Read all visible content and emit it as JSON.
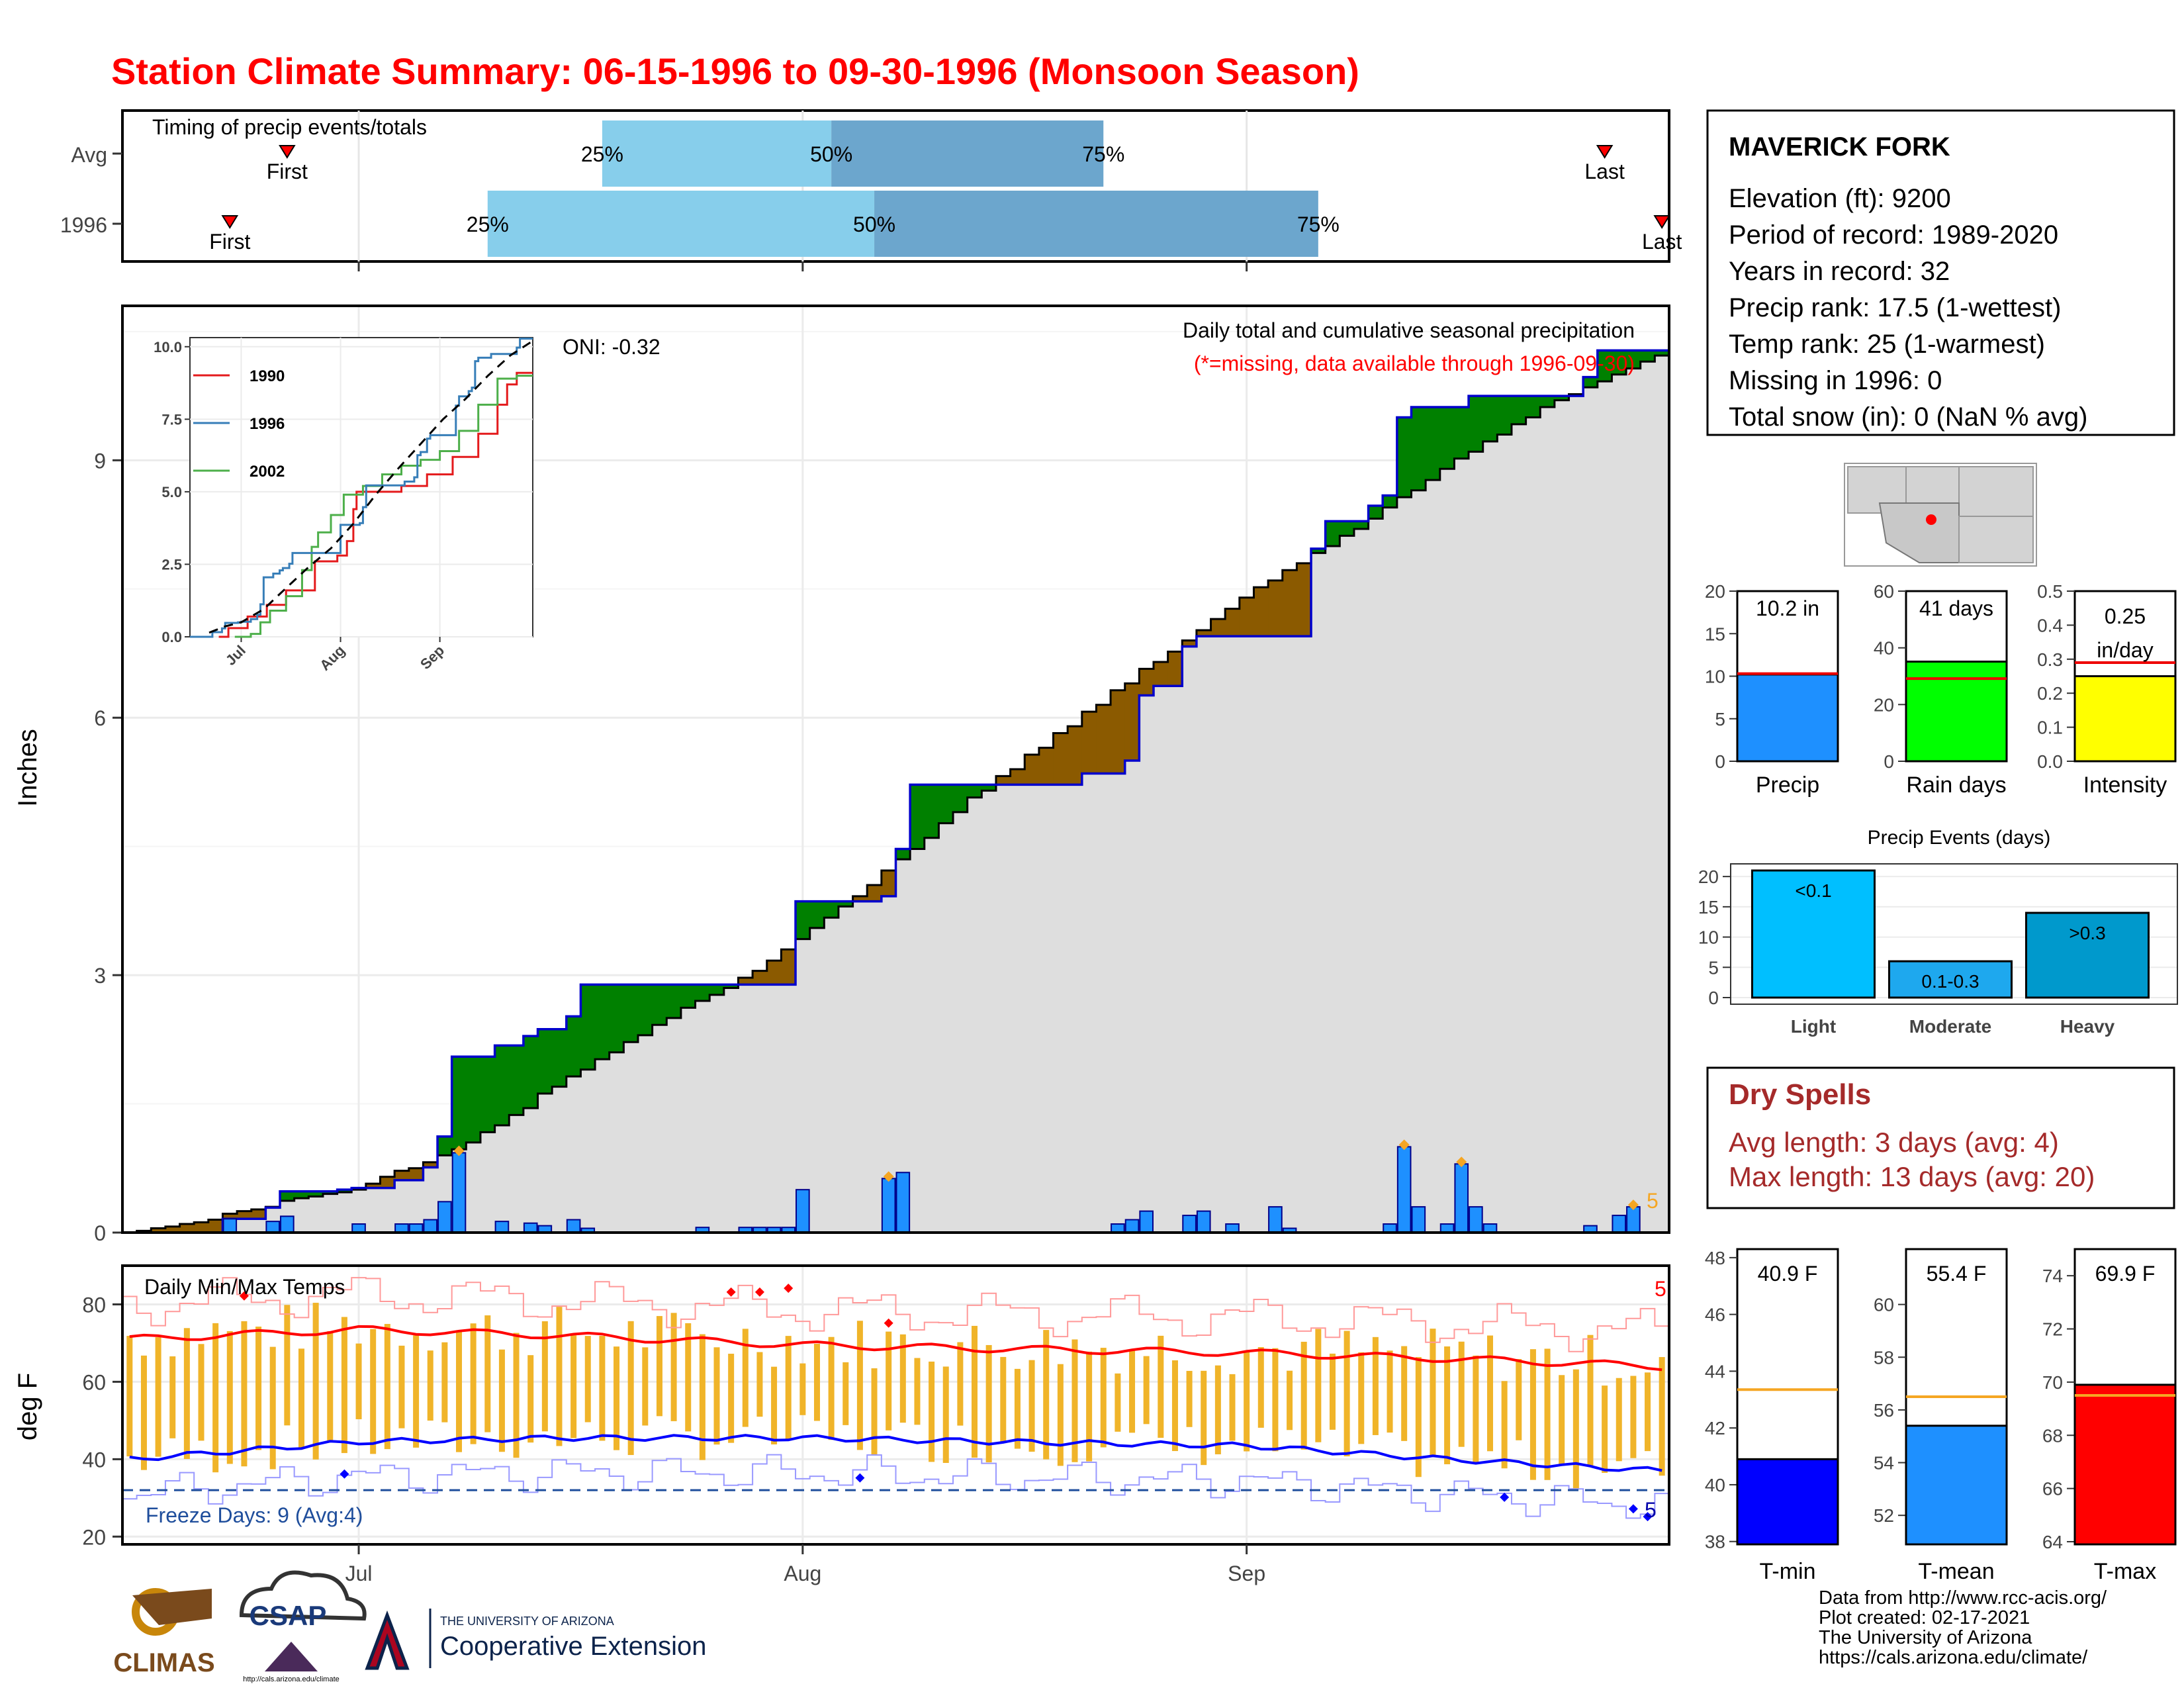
{
  "title": "Station Climate Summary: 06-15-1996 to 09-30-1996 (Monsoon Season)",
  "timing": {
    "label": "Timing of precip events/totals",
    "rows": [
      {
        "name": "Avg",
        "first": "06-26",
        "q25": "07-18",
        "q50": "08-03",
        "q75": "08-22",
        "last": "09-26"
      },
      {
        "name": "1996",
        "first": "06-22",
        "q25": "07-10",
        "q50": "08-06",
        "q75": "09-06",
        "last": "09-30"
      }
    ],
    "first_label": "First",
    "last_label": "Last",
    "q25_label": "25%",
    "q50_label": "50%",
    "q75_label": "75%"
  },
  "x_ticks": [
    "Jul",
    "Aug",
    "Sep"
  ],
  "precip_panel": {
    "title": "Daily total and cumulative seasonal precipitation",
    "note": "(*=missing, data available through 1996-09-30)",
    "oni": "ONI: -0.32",
    "ylabel": "Inches",
    "yticks": [
      "0",
      "3",
      "6",
      "9"
    ],
    "corner_count": "5"
  },
  "inset": {
    "yticks": [
      "0.0",
      "2.5",
      "5.0",
      "7.5",
      "10.0"
    ],
    "xticks": [
      "Jul",
      "Aug",
      "Sep"
    ],
    "legend": [
      {
        "label": "1990",
        "color": "#e41a1c"
      },
      {
        "label": "1996",
        "color": "#377eb8"
      },
      {
        "label": "2002",
        "color": "#4daf4a"
      }
    ]
  },
  "temp_panel": {
    "title": "Daily Min/Max Temps",
    "ylabel": "deg F",
    "yticks": [
      "20",
      "40",
      "60",
      "80"
    ],
    "freeze": "Freeze Days: 9 (Avg:4)",
    "max_count": "5",
    "min_count": "5"
  },
  "station": {
    "name": "MAVERICK FORK",
    "lines": [
      "Elevation (ft): 9200",
      "Period of record: 1989-2020",
      "Years in record: 32",
      "Precip rank: 17.5 (1-wettest)",
      "Temp rank: 25 (1-warmest)",
      "Missing in 1996: 0",
      "Total snow (in): 0 (NaN % avg)"
    ]
  },
  "summary_bars": [
    {
      "label": "Precip",
      "value_text": "10.2 in",
      "yticks": [
        "0",
        "5",
        "10",
        "15",
        "20"
      ],
      "color": "#1e90ff"
    },
    {
      "label": "Rain days",
      "value_text": "41 days",
      "yticks": [
        "0",
        "20",
        "40",
        "60"
      ],
      "color": "#00ff00"
    },
    {
      "label": "Intensity",
      "value_text_1": "0.25",
      "value_text_2": "in/day",
      "yticks": [
        "0.0",
        "0.1",
        "0.2",
        "0.3",
        "0.4",
        "0.5"
      ],
      "color": "#ffff00"
    }
  ],
  "events": {
    "title": "Precip Events (days)",
    "yticks": [
      "0",
      "5",
      "10",
      "15",
      "20"
    ],
    "bars": [
      {
        "label": "Light",
        "text": "<0.1",
        "color": "#00bfff"
      },
      {
        "label": "Moderate",
        "text": "0.1-0.3",
        "color": "#1ea8ee"
      },
      {
        "label": "Heavy",
        "text": ">0.3",
        "color": "#0099cc"
      }
    ]
  },
  "dry_spells": {
    "title": "Dry Spells",
    "avg": "Avg length: 3 days (avg: 4)",
    "max": "Max length: 13 days (avg: 20)"
  },
  "temp_bars": [
    {
      "label": "T-min",
      "value_text": "40.9 F",
      "yticks": [
        "38",
        "40",
        "42",
        "44",
        "46",
        "48"
      ],
      "color": "#0000ff"
    },
    {
      "label": "T-mean",
      "value_text": "55.4 F",
      "yticks": [
        "52",
        "54",
        "56",
        "58",
        "60"
      ],
      "color": "#1e90ff"
    },
    {
      "label": "T-max",
      "value_text": "69.9 F",
      "yticks": [
        "64",
        "66",
        "68",
        "70",
        "72",
        "74"
      ],
      "color": "#ff0000"
    }
  ],
  "footer": [
    "Data from http://www.rcc-acis.org/",
    "Plot created: 02-17-2021",
    "The University of Arizona",
    "https://cals.arizona.edu/climate/"
  ],
  "logos": {
    "climas": "CLIMAS",
    "csap": "CSAP",
    "csap_url": "http://cals.arizona.edu/climate",
    "ua_small": "THE UNIVERSITY OF ARIZONA",
    "ua_big": "Cooperative Extension"
  },
  "colors": {
    "title": "#ff0000",
    "wetter": "#008000",
    "drier": "#8b5a00",
    "dry_red": "#a52a2a",
    "avg_line": "#ff0000",
    "temp_bar": "#f0b429"
  },
  "chart_data": [
    {
      "type": "area",
      "title": "Daily total and cumulative seasonal precipitation",
      "ylabel": "Inches",
      "ylim": [
        0,
        10.8
      ],
      "x_start": "06-15",
      "x_end": "09-30",
      "cum_1996": [
        [
          "06-15",
          0
        ],
        [
          "06-22",
          0.16
        ],
        [
          "06-25",
          0.29
        ],
        [
          "06-26",
          0.48
        ],
        [
          "06-30",
          0.5
        ],
        [
          "07-01",
          0.52
        ],
        [
          "07-04",
          0.61
        ],
        [
          "07-06",
          0.76
        ],
        [
          "07-07",
          1.12
        ],
        [
          "07-08",
          2.05
        ],
        [
          "07-11",
          2.18
        ],
        [
          "07-13",
          2.29
        ],
        [
          "07-14",
          2.37
        ],
        [
          "07-16",
          2.52
        ],
        [
          "07-17",
          2.89
        ],
        [
          "07-31",
          2.89
        ],
        [
          "08-01",
          3.86
        ],
        [
          "08-07",
          3.92
        ],
        [
          "08-08",
          4.47
        ],
        [
          "08-09",
          5.22
        ],
        [
          "08-20",
          5.22
        ],
        [
          "08-21",
          5.35
        ],
        [
          "08-24",
          5.5
        ],
        [
          "08-25",
          6.26
        ],
        [
          "08-26",
          6.37
        ],
        [
          "08-28",
          6.83
        ],
        [
          "08-29",
          6.95
        ],
        [
          "09-05",
          6.95
        ],
        [
          "09-06",
          7.97
        ],
        [
          "09-07",
          8.29
        ],
        [
          "09-10",
          8.47
        ],
        [
          "09-11",
          8.59
        ],
        [
          "09-12",
          9.5
        ],
        [
          "09-13",
          9.62
        ],
        [
          "09-17",
          9.75
        ],
        [
          "09-25",
          9.97
        ],
        [
          "09-26",
          10.28
        ],
        [
          "09-30",
          10.28
        ]
      ],
      "daily_1996": [
        [
          "06-22",
          0.16
        ],
        [
          "06-25",
          0.13
        ],
        [
          "06-26",
          0.19
        ],
        [
          "07-01",
          0.1
        ],
        [
          "07-04",
          0.1
        ],
        [
          "07-05",
          0.1
        ],
        [
          "07-06",
          0.15
        ],
        [
          "07-07",
          0.36
        ],
        [
          "07-08",
          0.93
        ],
        [
          "07-11",
          0.13
        ],
        [
          "07-13",
          0.11
        ],
        [
          "07-14",
          0.08
        ],
        [
          "07-16",
          0.15
        ],
        [
          "07-17",
          0.05
        ],
        [
          "07-25",
          0.06
        ],
        [
          "07-28",
          0.06
        ],
        [
          "07-29",
          0.06
        ],
        [
          "07-30",
          0.06
        ],
        [
          "07-31",
          0.06
        ],
        [
          "08-01",
          0.5
        ],
        [
          "08-07",
          0.63
        ],
        [
          "08-08",
          0.7
        ],
        [
          "08-23",
          0.1
        ],
        [
          "08-24",
          0.15
        ],
        [
          "08-25",
          0.25
        ],
        [
          "08-28",
          0.2
        ],
        [
          "08-29",
          0.25
        ],
        [
          "08-31",
          0.1
        ],
        [
          "09-03",
          0.3
        ],
        [
          "09-04",
          0.05
        ],
        [
          "09-11",
          0.1
        ],
        [
          "09-12",
          1.0
        ],
        [
          "09-13",
          0.3
        ],
        [
          "09-15",
          0.1
        ],
        [
          "09-16",
          0.8
        ],
        [
          "09-17",
          0.3
        ],
        [
          "09-18",
          0.1
        ],
        [
          "09-25",
          0.08
        ],
        [
          "09-27",
          0.2
        ],
        [
          "09-28",
          0.3
        ]
      ],
      "avg_cum": [
        [
          "06-15",
          0
        ],
        [
          "06-20",
          0.1
        ],
        [
          "06-26",
          0.36
        ],
        [
          "07-01",
          0.5
        ],
        [
          "07-08",
          0.95
        ],
        [
          "07-15",
          1.68
        ],
        [
          "07-22",
          2.4
        ],
        [
          "07-29",
          3.05
        ],
        [
          "08-05",
          3.9
        ],
        [
          "08-12",
          4.9
        ],
        [
          "08-19",
          5.8
        ],
        [
          "08-26",
          6.65
        ],
        [
          "09-02",
          7.5
        ],
        [
          "09-09",
          8.2
        ],
        [
          "09-16",
          9.0
        ],
        [
          "09-23",
          9.7
        ],
        [
          "09-30",
          10.2
        ]
      ]
    },
    {
      "type": "line",
      "title": "Daily Min/Max Temps",
      "ylabel": "deg F",
      "ylim": [
        18,
        90
      ],
      "avg_max": [
        [
          "06-15",
          71
        ],
        [
          "07-01",
          73.5
        ],
        [
          "07-15",
          72
        ],
        [
          "08-01",
          69.5
        ],
        [
          "08-15",
          68.5
        ],
        [
          "09-01",
          67.5
        ],
        [
          "09-15",
          66
        ],
        [
          "09-30",
          64
        ]
      ],
      "avg_min": [
        [
          "06-15",
          40
        ],
        [
          "07-01",
          44.5
        ],
        [
          "07-15",
          45.5
        ],
        [
          "08-01",
          45.5
        ],
        [
          "08-15",
          44.5
        ],
        [
          "09-01",
          43.5
        ],
        [
          "09-15",
          40
        ],
        [
          "09-30",
          37
        ]
      ],
      "freeze_line": 32
    }
  ]
}
